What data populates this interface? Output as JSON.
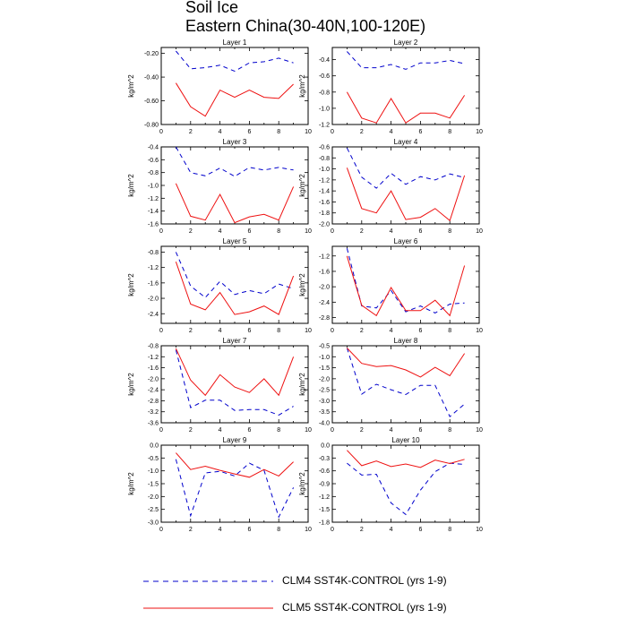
{
  "title": "Soil Ice",
  "subtitle": "Eastern China(30-40N,100-120E)",
  "colors": {
    "clm4": "#0000cc",
    "clm5": "#ee1111"
  },
  "legend": [
    {
      "label": "CLM4 SST4K-CONTROL (yrs 1-9)",
      "style": "dashed",
      "color": "#0000cc"
    },
    {
      "label": "CLM5 SST4K-CONTROL (yrs 1-9)",
      "style": "solid",
      "color": "#ee1111"
    }
  ],
  "chart_data": [
    {
      "type": "line",
      "title": "Layer 1",
      "ylabel": "kg/m^2",
      "xlim": [
        0,
        10
      ],
      "ylim": [
        -0.8,
        -0.15
      ],
      "xticks": [
        0,
        2,
        4,
        6,
        8,
        10
      ],
      "xtick_labels": [
        "0",
        "2",
        "4",
        "6",
        "8",
        "10"
      ],
      "yticks": [
        -0.8,
        -0.6,
        -0.4,
        -0.2
      ],
      "ytick_labels": [
        "-0.80",
        "-0.60",
        "-0.40",
        "-0.20"
      ],
      "x": [
        1,
        2,
        3,
        4,
        5,
        6,
        7,
        8,
        9
      ],
      "series": [
        {
          "name": "CLM4 SST4K-CONTROL (yrs 1-9)",
          "values": [
            -0.18,
            -0.33,
            -0.32,
            -0.3,
            -0.35,
            -0.28,
            -0.27,
            -0.24,
            -0.28
          ]
        },
        {
          "name": "CLM5 SST4K-CONTROL (yrs 1-9)",
          "values": [
            -0.45,
            -0.65,
            -0.73,
            -0.51,
            -0.57,
            -0.51,
            -0.57,
            -0.58,
            -0.46
          ]
        }
      ]
    },
    {
      "type": "line",
      "title": "Layer 2",
      "ylabel": "kg/m^2",
      "xlim": [
        0,
        10
      ],
      "ylim": [
        -1.2,
        -0.25
      ],
      "xticks": [
        0,
        2,
        4,
        6,
        8,
        10
      ],
      "xtick_labels": [
        "0",
        "2",
        "4",
        "6",
        "8",
        "10"
      ],
      "yticks": [
        -1.2,
        -1.0,
        -0.8,
        -0.6,
        -0.4
      ],
      "ytick_labels": [
        "-1.2",
        "-1.0",
        "-0.8",
        "-0.6",
        "-0.4"
      ],
      "x": [
        1,
        2,
        3,
        4,
        5,
        6,
        7,
        8,
        9
      ],
      "series": [
        {
          "name": "CLM4 SST4K-CONTROL (yrs 1-9)",
          "values": [
            -0.3,
            -0.5,
            -0.5,
            -0.46,
            -0.52,
            -0.44,
            -0.44,
            -0.41,
            -0.45
          ]
        },
        {
          "name": "CLM5 SST4K-CONTROL (yrs 1-9)",
          "values": [
            -0.8,
            -1.12,
            -1.18,
            -0.88,
            -1.18,
            -1.06,
            -1.06,
            -1.12,
            -0.84
          ]
        }
      ]
    },
    {
      "type": "line",
      "title": "Layer 3",
      "ylabel": "kg/m^2",
      "xlim": [
        0,
        10
      ],
      "ylim": [
        -1.6,
        -0.4
      ],
      "xticks": [
        0,
        2,
        4,
        6,
        8,
        10
      ],
      "xtick_labels": [
        "0",
        "2",
        "4",
        "6",
        "8",
        "10"
      ],
      "yticks": [
        -1.6,
        -1.4,
        -1.2,
        -1.0,
        -0.8,
        -0.6,
        -0.4
      ],
      "ytick_labels": [
        "-1.6",
        "-1.4",
        "-1.2",
        "-1.0",
        "-0.8",
        "-0.6",
        "-0.4"
      ],
      "x": [
        1,
        2,
        3,
        4,
        5,
        6,
        7,
        8,
        9
      ],
      "series": [
        {
          "name": "CLM4 SST4K-CONTROL (yrs 1-9)",
          "values": [
            -0.4,
            -0.8,
            -0.85,
            -0.73,
            -0.86,
            -0.72,
            -0.76,
            -0.72,
            -0.76
          ]
        },
        {
          "name": "CLM5 SST4K-CONTROL (yrs 1-9)",
          "values": [
            -0.97,
            -1.48,
            -1.54,
            -1.14,
            -1.58,
            -1.49,
            -1.45,
            -1.54,
            -1.02
          ]
        }
      ]
    },
    {
      "type": "line",
      "title": "Layer 4",
      "ylabel": "kg/m^2",
      "xlim": [
        0,
        10
      ],
      "ylim": [
        -2.0,
        -0.6
      ],
      "xticks": [
        0,
        2,
        4,
        6,
        8,
        10
      ],
      "xtick_labels": [
        "0",
        "2",
        "4",
        "6",
        "8",
        "10"
      ],
      "yticks": [
        -2.0,
        -1.8,
        -1.6,
        -1.4,
        -1.2,
        -1.0,
        -0.8,
        -0.6
      ],
      "ytick_labels": [
        "-2.0",
        "-1.8",
        "-1.6",
        "-1.4",
        "-1.2",
        "-1.0",
        "-0.8",
        "-0.6"
      ],
      "x": [
        1,
        2,
        3,
        4,
        5,
        6,
        7,
        8,
        9
      ],
      "series": [
        {
          "name": "CLM4 SST4K-CONTROL (yrs 1-9)",
          "values": [
            -0.62,
            -1.15,
            -1.35,
            -1.08,
            -1.28,
            -1.14,
            -1.2,
            -1.09,
            -1.16
          ]
        },
        {
          "name": "CLM5 SST4K-CONTROL (yrs 1-9)",
          "values": [
            -0.98,
            -1.72,
            -1.8,
            -1.4,
            -1.92,
            -1.88,
            -1.72,
            -1.94,
            -1.12
          ]
        }
      ]
    },
    {
      "type": "line",
      "title": "Layer 5",
      "ylabel": "kg/m^2",
      "xlim": [
        0,
        10
      ],
      "ylim": [
        -2.65,
        -0.65
      ],
      "xticks": [
        0,
        2,
        4,
        6,
        8,
        10
      ],
      "xtick_labels": [
        "0",
        "2",
        "4",
        "6",
        "8",
        "10"
      ],
      "yticks": [
        -2.4,
        -2.0,
        -1.6,
        -1.2,
        -0.8
      ],
      "ytick_labels": [
        "-2.4",
        "-2.0",
        "-1.6",
        "-1.2",
        "-0.8"
      ],
      "x": [
        1,
        2,
        3,
        4,
        5,
        6,
        7,
        8,
        9
      ],
      "series": [
        {
          "name": "CLM4 SST4K-CONTROL (yrs 1-9)",
          "values": [
            -0.8,
            -1.68,
            -1.98,
            -1.56,
            -1.9,
            -1.8,
            -1.88,
            -1.63,
            -1.75
          ]
        },
        {
          "name": "CLM5 SST4K-CONTROL (yrs 1-9)",
          "values": [
            -1.05,
            -2.15,
            -2.3,
            -1.85,
            -2.42,
            -2.35,
            -2.2,
            -2.42,
            -1.42
          ]
        }
      ]
    },
    {
      "type": "line",
      "title": "Layer 6",
      "ylabel": "kg/m^2",
      "xlim": [
        0,
        10
      ],
      "ylim": [
        -2.95,
        -0.95
      ],
      "xticks": [
        0,
        2,
        4,
        6,
        8,
        10
      ],
      "xtick_labels": [
        "0",
        "2",
        "4",
        "6",
        "8",
        "10"
      ],
      "yticks": [
        -2.8,
        -2.4,
        -2.0,
        -1.6,
        -1.2
      ],
      "ytick_labels": [
        "-2.8",
        "-2.4",
        "-2.0",
        "-1.6",
        "-1.2"
      ],
      "x": [
        1,
        2,
        3,
        4,
        5,
        6,
        7,
        8,
        9
      ],
      "series": [
        {
          "name": "CLM4 SST4K-CONTROL (yrs 1-9)",
          "values": [
            -1.0,
            -2.5,
            -2.55,
            -2.1,
            -2.65,
            -2.5,
            -2.68,
            -2.45,
            -2.42
          ]
        },
        {
          "name": "CLM5 SST4K-CONTROL (yrs 1-9)",
          "values": [
            -1.2,
            -2.48,
            -2.75,
            -2.02,
            -2.62,
            -2.62,
            -2.35,
            -2.75,
            -1.45
          ]
        }
      ]
    },
    {
      "type": "line",
      "title": "Layer 7",
      "ylabel": "kg/m^2",
      "xlim": [
        0,
        10
      ],
      "ylim": [
        -3.6,
        -0.8
      ],
      "xticks": [
        0,
        2,
        4,
        6,
        8,
        10
      ],
      "xtick_labels": [
        "0",
        "2",
        "4",
        "6",
        "8",
        "10"
      ],
      "yticks": [
        -3.6,
        -3.2,
        -2.8,
        -2.4,
        -2.0,
        -1.6,
        -1.2,
        -0.8
      ],
      "ytick_labels": [
        "-3.6",
        "-3.2",
        "-2.8",
        "-2.4",
        "-2.0",
        "-1.6",
        "-1.2",
        "-0.8"
      ],
      "x": [
        1,
        2,
        3,
        4,
        5,
        6,
        7,
        8,
        9
      ],
      "series": [
        {
          "name": "CLM4 SST4K-CONTROL (yrs 1-9)",
          "values": [
            -0.95,
            -3.05,
            -2.78,
            -2.78,
            -3.15,
            -3.12,
            -3.12,
            -3.32,
            -3.0
          ]
        },
        {
          "name": "CLM5 SST4K-CONTROL (yrs 1-9)",
          "values": [
            -0.9,
            -2.05,
            -2.6,
            -1.85,
            -2.3,
            -2.5,
            -2.0,
            -2.6,
            -1.2
          ]
        }
      ]
    },
    {
      "type": "line",
      "title": "Layer 8",
      "ylabel": "kg/m^2",
      "xlim": [
        0,
        10
      ],
      "ylim": [
        -4.0,
        -0.5
      ],
      "xticks": [
        0,
        2,
        4,
        6,
        8,
        10
      ],
      "xtick_labels": [
        "0",
        "2",
        "4",
        "6",
        "8",
        "10"
      ],
      "yticks": [
        -4.0,
        -3.5,
        -3.0,
        -2.5,
        -2.0,
        -1.5,
        -1.0,
        -0.5
      ],
      "ytick_labels": [
        "-4.0",
        "-3.5",
        "-3.0",
        "-2.5",
        "-2.0",
        "-1.5",
        "-1.0",
        "-0.5"
      ],
      "x": [
        1,
        2,
        3,
        4,
        5,
        6,
        7,
        8,
        9
      ],
      "series": [
        {
          "name": "CLM4 SST4K-CONTROL (yrs 1-9)",
          "values": [
            -0.6,
            -2.7,
            -2.25,
            -2.5,
            -2.72,
            -2.3,
            -2.3,
            -3.72,
            -3.15
          ]
        },
        {
          "name": "CLM5 SST4K-CONTROL (yrs 1-9)",
          "values": [
            -0.6,
            -1.3,
            -1.45,
            -1.4,
            -1.6,
            -1.92,
            -1.48,
            -1.86,
            -0.85
          ]
        }
      ]
    },
    {
      "type": "line",
      "title": "Layer 9",
      "ylabel": "kg/m^2",
      "xlim": [
        0,
        10
      ],
      "ylim": [
        -3.0,
        0.0
      ],
      "xticks": [
        0,
        2,
        4,
        6,
        8,
        10
      ],
      "xtick_labels": [
        "0",
        "2",
        "4",
        "6",
        "8",
        "10"
      ],
      "yticks": [
        -3.0,
        -2.5,
        -2.0,
        -1.5,
        -1.0,
        -0.5,
        0.0
      ],
      "ytick_labels": [
        "-3.0",
        "-2.5",
        "-2.0",
        "-1.5",
        "-1.0",
        "-0.5",
        "0.0"
      ],
      "x": [
        1,
        2,
        3,
        4,
        5,
        6,
        7,
        8,
        9
      ],
      "series": [
        {
          "name": "CLM4 SST4K-CONTROL (yrs 1-9)",
          "values": [
            -0.55,
            -2.75,
            -1.08,
            -1.02,
            -1.2,
            -0.7,
            -0.98,
            -2.8,
            -1.65
          ]
        },
        {
          "name": "CLM5 SST4K-CONTROL (yrs 1-9)",
          "values": [
            -0.3,
            -0.95,
            -0.82,
            -0.98,
            -1.12,
            -1.25,
            -0.95,
            -1.2,
            -0.65
          ]
        }
      ]
    },
    {
      "type": "line",
      "title": "Layer 10",
      "ylabel": "kg/m^2",
      "xlim": [
        0,
        10
      ],
      "ylim": [
        -1.8,
        0.0
      ],
      "xticks": [
        0,
        2,
        4,
        6,
        8,
        10
      ],
      "xtick_labels": [
        "0",
        "2",
        "4",
        "6",
        "8",
        "10"
      ],
      "yticks": [
        -1.8,
        -1.5,
        -1.2,
        -0.9,
        -0.6,
        -0.3,
        0.0
      ],
      "ytick_labels": [
        "-1.8",
        "-1.5",
        "-1.2",
        "-0.9",
        "-0.6",
        "-0.3",
        "0.0"
      ],
      "x": [
        1,
        2,
        3,
        4,
        5,
        6,
        7,
        8,
        9
      ],
      "series": [
        {
          "name": "CLM4 SST4K-CONTROL (yrs 1-9)",
          "values": [
            -0.42,
            -0.7,
            -0.68,
            -1.35,
            -1.62,
            -1.05,
            -0.62,
            -0.42,
            -0.45
          ]
        },
        {
          "name": "CLM5 SST4K-CONTROL (yrs 1-9)",
          "values": [
            -0.12,
            -0.48,
            -0.37,
            -0.5,
            -0.44,
            -0.52,
            -0.35,
            -0.43,
            -0.33
          ]
        }
      ]
    }
  ]
}
